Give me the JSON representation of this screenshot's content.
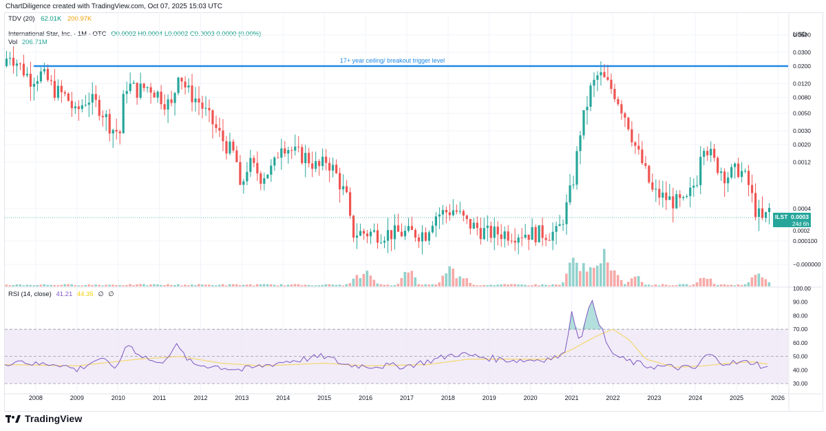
{
  "header": {
    "credit": "ChartDiligence created with TradingView.com, Oct 07, 2025 15:03 UTC"
  },
  "indicator_tdv": {
    "label": "TDV (20)",
    "value1": "62.01K",
    "value2": "200.97K"
  },
  "symbol": {
    "title": "International Star, Inc. · 1M · OTC",
    "ohlc": "O0.0002 H0.0004 L0.0002 C0.0003 0.0000 (0.00%)"
  },
  "volume": {
    "label": "Vol",
    "value": "206.71M"
  },
  "rsi": {
    "label": "RSI (14, close)",
    "value": "41.21",
    "ma": "44.35",
    "extra1": "∅",
    "extra2": "∅"
  },
  "currency": "USD",
  "price_tag": {
    "symbol": "ILST",
    "price": "0.0003",
    "countdown": "24d 6h",
    "hidden_label": "0.0002"
  },
  "annotation": {
    "text": "17+ year ceiling/ breakout trigger level",
    "level": 0.02,
    "color": "#1e88e5"
  },
  "branding": "TradingView",
  "colors": {
    "up": "#26a69a",
    "down": "#ef5350",
    "rsi": "#7e57c2",
    "rsi_ma": "#f5d76e",
    "band": "#ede7f6"
  },
  "chart_data": [
    {
      "type": "candlestick",
      "scale": "log",
      "x_range": [
        2007.25,
        2026.25
      ],
      "price_ticks": [
        "0.0500",
        "0.0300",
        "0.0200",
        "0.0120",
        "0.0080",
        "0.0050",
        "0.0030",
        "0.0020",
        "0.0012",
        "0.0004",
        "0.000100",
        "−0.000000"
      ],
      "year_labels": [
        "2008",
        "2009",
        "2010",
        "2011",
        "2012",
        "2013",
        "2014",
        "2015",
        "2016",
        "2017",
        "2018",
        "2019",
        "2020",
        "2021",
        "2022",
        "2023",
        "2024",
        "2025",
        "2026"
      ],
      "price_path": [
        [
          2007.25,
          0.02
        ],
        [
          2007.4,
          0.03
        ],
        [
          2007.6,
          0.022
        ],
        [
          2007.9,
          0.014
        ],
        [
          2008.2,
          0.016
        ],
        [
          2008.5,
          0.01
        ],
        [
          2008.8,
          0.008
        ],
        [
          2009.0,
          0.005
        ],
        [
          2009.3,
          0.008
        ],
        [
          2009.6,
          0.006
        ],
        [
          2009.9,
          0.0032
        ],
        [
          2010.1,
          0.0028
        ],
        [
          2010.2,
          0.012
        ],
        [
          2010.5,
          0.01
        ],
        [
          2010.8,
          0.011
        ],
        [
          2011.1,
          0.008
        ],
        [
          2011.35,
          0.006
        ],
        [
          2011.5,
          0.018
        ],
        [
          2011.7,
          0.01
        ],
        [
          2012.0,
          0.007
        ],
        [
          2012.3,
          0.004
        ],
        [
          2012.6,
          0.0022
        ],
        [
          2012.9,
          0.0014
        ],
        [
          2013.0,
          0.0005
        ],
        [
          2013.2,
          0.0012
        ],
        [
          2013.5,
          0.0008
        ],
        [
          2013.8,
          0.001
        ],
        [
          2014.0,
          0.0022
        ],
        [
          2014.3,
          0.0016
        ],
        [
          2014.6,
          0.0014
        ],
        [
          2014.9,
          0.001
        ],
        [
          2015.1,
          0.0013
        ],
        [
          2015.3,
          0.0009
        ],
        [
          2015.6,
          0.0004
        ],
        [
          2015.7,
          0.00015
        ],
        [
          2017.5,
          0.00015
        ],
        [
          2017.7,
          0.00025
        ],
        [
          2018.2,
          0.0003
        ],
        [
          2018.5,
          0.0002
        ],
        [
          2019.0,
          0.00015
        ],
        [
          2020.7,
          0.00015
        ],
        [
          2020.9,
          0.0003
        ],
        [
          2021.1,
          0.0008
        ],
        [
          2021.25,
          0.003
        ],
        [
          2021.5,
          0.01
        ],
        [
          2021.7,
          0.016
        ],
        [
          2021.9,
          0.012
        ],
        [
          2022.1,
          0.009
        ],
        [
          2022.4,
          0.004
        ],
        [
          2022.6,
          0.0018
        ],
        [
          2022.8,
          0.001
        ],
        [
          2023.0,
          0.0005
        ],
        [
          2023.4,
          0.0004
        ],
        [
          2023.8,
          0.00035
        ],
        [
          2024.1,
          0.0008
        ],
        [
          2024.2,
          0.0025
        ],
        [
          2024.5,
          0.0012
        ],
        [
          2024.8,
          0.0008
        ],
        [
          2025.1,
          0.001
        ],
        [
          2025.3,
          0.0007
        ],
        [
          2025.5,
          0.0003
        ],
        [
          2025.7,
          0.0002
        ],
        [
          2025.8,
          0.0003
        ]
      ],
      "volume_spikes": [
        [
          2015.75,
          0.25
        ],
        [
          2016.0,
          0.4
        ],
        [
          2017.0,
          0.45
        ],
        [
          2018.0,
          0.55
        ],
        [
          2018.3,
          0.3
        ],
        [
          2021.0,
          0.75
        ],
        [
          2021.25,
          0.5
        ],
        [
          2021.5,
          0.6
        ],
        [
          2021.75,
          0.8
        ],
        [
          2022.0,
          0.35
        ],
        [
          2022.5,
          0.3
        ],
        [
          2024.2,
          0.3
        ],
        [
          2025.45,
          0.35
        ],
        [
          2025.6,
          0.2
        ]
      ]
    },
    {
      "type": "line",
      "name": "RSI (14, close)",
      "y_ticks": [
        30,
        40,
        50,
        60,
        70,
        80,
        90,
        100
      ],
      "y_range": [
        26,
        100
      ],
      "bands": {
        "upper": 70,
        "middle": 50,
        "lower": 30
      },
      "rsi": [
        [
          2007.25,
          42
        ],
        [
          2007.5,
          48
        ],
        [
          2008.0,
          44
        ],
        [
          2008.5,
          45
        ],
        [
          2009.0,
          40
        ],
        [
          2009.5,
          48
        ],
        [
          2010.0,
          42
        ],
        [
          2010.2,
          60
        ],
        [
          2010.5,
          52
        ],
        [
          2011.0,
          44
        ],
        [
          2011.4,
          58
        ],
        [
          2011.8,
          44
        ],
        [
          2012.3,
          43
        ],
        [
          2013.0,
          40
        ],
        [
          2013.5,
          43
        ],
        [
          2014.0,
          46
        ],
        [
          2014.5,
          48
        ],
        [
          2015.0,
          50
        ],
        [
          2015.5,
          44
        ],
        [
          2016.0,
          43
        ],
        [
          2017.0,
          43
        ],
        [
          2017.6,
          47
        ],
        [
          2018.2,
          52
        ],
        [
          2018.7,
          50
        ],
        [
          2019.2,
          48
        ],
        [
          2019.8,
          47
        ],
        [
          2020.3,
          48
        ],
        [
          2020.8,
          50
        ],
        [
          2021.0,
          82
        ],
        [
          2021.2,
          62
        ],
        [
          2021.5,
          92
        ],
        [
          2021.7,
          72
        ],
        [
          2021.9,
          55
        ],
        [
          2022.2,
          48
        ],
        [
          2022.8,
          43
        ],
        [
          2023.5,
          42
        ],
        [
          2024.0,
          41
        ],
        [
          2024.3,
          52
        ],
        [
          2024.6,
          46
        ],
        [
          2025.0,
          45
        ],
        [
          2025.4,
          46
        ],
        [
          2025.75,
          41
        ]
      ],
      "rsi_ma": [
        [
          2007.25,
          44
        ],
        [
          2009.0,
          43
        ],
        [
          2010.5,
          48
        ],
        [
          2011.5,
          50
        ],
        [
          2012.5,
          45
        ],
        [
          2013.5,
          43
        ],
        [
          2015.0,
          45
        ],
        [
          2016.0,
          43
        ],
        [
          2017.5,
          44
        ],
        [
          2018.5,
          48
        ],
        [
          2020.5,
          48
        ],
        [
          2021.0,
          55
        ],
        [
          2021.6,
          65
        ],
        [
          2022.0,
          70
        ],
        [
          2022.4,
          62
        ],
        [
          2022.8,
          48
        ],
        [
          2023.5,
          42
        ],
        [
          2024.2,
          43
        ],
        [
          2024.8,
          45
        ],
        [
          2025.4,
          46
        ],
        [
          2025.8,
          44
        ]
      ]
    }
  ]
}
